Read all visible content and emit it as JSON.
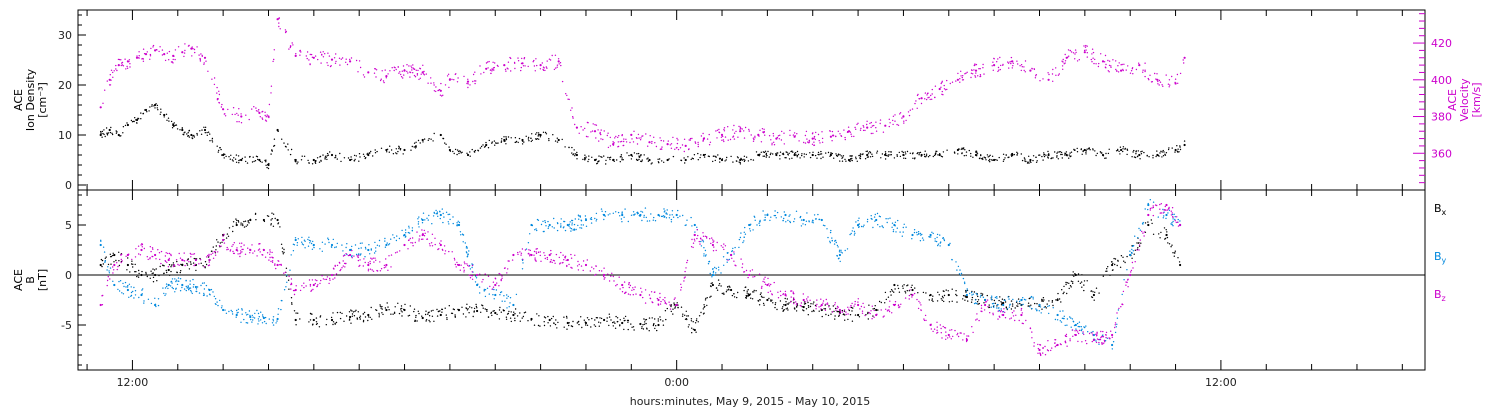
{
  "chart_data": [
    {
      "type": "scatter",
      "panel": "top",
      "ylabel_left_lines": [
        "ACE",
        "Ion Density",
        "[cm⁻³]"
      ],
      "ylabel_right_lines": [
        "ACE",
        "Velocity",
        "[km/s]"
      ],
      "ylim_left": [
        -1,
        35
      ],
      "ylim_right": [
        340,
        438
      ],
      "yticks_left": [
        "0",
        "10",
        "20",
        "30"
      ],
      "yticks_right": [
        "360",
        "380",
        "400",
        "420"
      ],
      "grid": false,
      "series": [
        {
          "axis": "left",
          "color": "#000000",
          "x": [
            -0.7,
            -0.5,
            -0.3,
            -0.1,
            0.1,
            0.3,
            0.5,
            0.7,
            0.9,
            1.1,
            1.3,
            1.6,
            2.0,
            2.4,
            2.8,
            3.0,
            3.2,
            3.6,
            4.0,
            4.4,
            4.8,
            5.2,
            5.6,
            6.0,
            6.4,
            6.8,
            7.0,
            7.4,
            7.8,
            8.2,
            8.6,
            9.0,
            9.4,
            9.8,
            10.2,
            10.6,
            11.0,
            11.4,
            11.8,
            12.2,
            12.6,
            13.0,
            13.4,
            13.8,
            14.2,
            14.6,
            15.0,
            15.4,
            15.8,
            16.2,
            16.6,
            17.0,
            17.4,
            17.8,
            18.2,
            18.6,
            19.0,
            19.4,
            19.8,
            20.2,
            20.6,
            21.0,
            21.4,
            21.8,
            22.2,
            22.6,
            23.0,
            23.2
          ],
          "y": [
            10,
            11,
            10,
            12,
            13,
            15,
            16,
            14,
            12,
            11,
            10,
            11,
            6,
            5,
            5,
            4,
            11,
            5,
            5,
            6,
            5,
            6,
            7,
            7,
            9,
            10,
            7,
            6,
            8,
            9,
            9,
            10,
            9,
            6,
            5,
            5,
            6,
            5,
            5,
            5,
            6,
            5,
            5,
            6,
            6,
            6,
            6,
            6,
            5,
            6,
            6,
            6,
            6,
            6,
            7,
            6,
            5,
            6,
            5,
            6,
            6,
            7,
            6,
            7,
            6,
            6,
            7,
            8
          ]
        },
        {
          "axis": "right",
          "color": "#cc00cc",
          "x": [
            -0.7,
            -0.5,
            -0.3,
            -0.1,
            0.1,
            0.3,
            0.5,
            0.7,
            0.9,
            1.1,
            1.3,
            1.6,
            2.0,
            2.4,
            2.8,
            3.0,
            3.2,
            3.6,
            4.0,
            4.4,
            4.8,
            5.2,
            5.6,
            6.0,
            6.4,
            6.8,
            7.0,
            7.4,
            7.8,
            8.2,
            8.6,
            9.0,
            9.4,
            9.8,
            10.2,
            10.6,
            11.0,
            11.4,
            11.8,
            12.2,
            12.6,
            13.0,
            13.4,
            13.8,
            14.2,
            14.6,
            15.0,
            15.4,
            15.8,
            16.2,
            16.6,
            17.0,
            17.4,
            17.8,
            18.2,
            18.6,
            19.0,
            19.4,
            19.8,
            20.2,
            20.6,
            21.0,
            21.4,
            21.8,
            22.2,
            22.6,
            23.0,
            23.2
          ],
          "y": [
            385,
            400,
            408,
            410,
            412,
            414,
            416,
            414,
            413,
            415,
            417,
            412,
            384,
            380,
            382,
            380,
            433,
            413,
            412,
            411,
            410,
            404,
            402,
            405,
            404,
            394,
            400,
            399,
            406,
            408,
            409,
            408,
            410,
            374,
            372,
            365,
            370,
            366,
            365,
            364,
            368,
            370,
            372,
            370,
            368,
            369,
            368,
            369,
            372,
            374,
            375,
            380,
            390,
            395,
            400,
            405,
            408,
            410,
            405,
            400,
            412,
            415,
            410,
            405,
            408,
            400,
            398,
            412
          ]
        }
      ]
    },
    {
      "type": "scatter",
      "panel": "bottom",
      "ylabel_left_lines": [
        "ACE",
        "B",
        "[nT]"
      ],
      "ylim": [
        -9.5,
        8.5
      ],
      "yticks": [
        "-5",
        "0",
        "5"
      ],
      "zero_line": true,
      "grid": false,
      "legend_position": "right",
      "series": [
        {
          "name": "B",
          "subscript": "x",
          "color": "#000000",
          "x": [
            -0.7,
            -0.4,
            -0.1,
            0.2,
            0.5,
            0.8,
            1.1,
            1.4,
            1.7,
            2.0,
            2.3,
            2.6,
            2.9,
            3.2,
            3.6,
            4.0,
            4.4,
            4.8,
            5.2,
            5.6,
            6.0,
            6.4,
            6.8,
            7.2,
            7.6,
            8.0,
            8.4,
            8.8,
            9.2,
            9.6,
            10.0,
            10.4,
            10.8,
            11.2,
            11.6,
            12.0,
            12.4,
            12.8,
            13.2,
            13.6,
            14.0,
            14.4,
            14.8,
            15.2,
            15.6,
            16.0,
            16.4,
            16.8,
            17.2,
            17.6,
            18.0,
            18.4,
            18.8,
            19.2,
            19.6,
            20.0,
            20.4,
            20.8,
            21.2,
            21.6,
            22.0,
            22.4,
            22.8,
            23.1
          ],
          "y": [
            1,
            2,
            1,
            0,
            0,
            0.5,
            1,
            1,
            1.5,
            4,
            5,
            5.5,
            5.5,
            5.5,
            -4.5,
            -4.5,
            -4.5,
            -4.2,
            -4,
            -3.5,
            -3.5,
            -4.3,
            -4,
            -3.5,
            -3.6,
            -3.8,
            -4,
            -4.4,
            -4.5,
            -4.8,
            -4.8,
            -4.5,
            -4.8,
            -4.9,
            -5,
            -3,
            -5.5,
            -1,
            -1.5,
            -2,
            -2.5,
            -3,
            -3.2,
            -3.5,
            -3.8,
            -4,
            -3.5,
            -1,
            -1.5,
            -2,
            -2,
            -2.2,
            -2.5,
            -2.8,
            -3,
            -3,
            -2.5,
            0,
            -2,
            1,
            2,
            5,
            4,
            1
          ]
        },
        {
          "name": "B",
          "subscript": "y",
          "color": "#0088dd",
          "x": [
            -0.7,
            -0.4,
            -0.1,
            0.2,
            0.5,
            0.8,
            1.1,
            1.4,
            1.7,
            2.0,
            2.3,
            2.6,
            2.9,
            3.2,
            3.6,
            4.0,
            4.4,
            4.8,
            5.2,
            5.6,
            6.0,
            6.4,
            6.8,
            7.2,
            7.6,
            8.0,
            8.4,
            8.8,
            9.2,
            9.6,
            10.0,
            10.4,
            10.8,
            11.2,
            11.6,
            12.0,
            12.4,
            12.8,
            13.2,
            13.6,
            14.0,
            14.4,
            14.8,
            15.2,
            15.6,
            16.0,
            16.4,
            16.8,
            17.2,
            17.6,
            18.0,
            18.4,
            18.8,
            19.2,
            19.6,
            20.0,
            20.4,
            20.8,
            21.2,
            21.6,
            22.0,
            22.4,
            22.8,
            23.1
          ],
          "y": [
            3,
            -1,
            -1.5,
            -2,
            -3,
            -1,
            -1,
            -1.2,
            -1.5,
            -3.5,
            -4,
            -4.2,
            -4.3,
            -4.4,
            3.5,
            3,
            3,
            2.5,
            2.5,
            3,
            4,
            5.5,
            6,
            5,
            -1,
            -2,
            -3,
            5,
            5,
            5,
            5.5,
            6,
            6,
            6,
            6,
            6,
            5,
            0,
            2,
            5,
            6,
            6,
            5.5,
            5.5,
            2,
            5,
            5.5,
            5,
            4,
            4,
            3,
            -2,
            -2.5,
            -3,
            -2.5,
            -3,
            -4,
            -5,
            -6,
            -7,
            2,
            7,
            6,
            5
          ]
        },
        {
          "name": "B",
          "subscript": "z",
          "color": "#cc00cc",
          "x": [
            -0.7,
            -0.4,
            -0.1,
            0.2,
            0.5,
            0.8,
            1.1,
            1.4,
            1.7,
            2.0,
            2.3,
            2.6,
            2.9,
            3.2,
            3.6,
            4.0,
            4.4,
            4.8,
            5.2,
            5.6,
            6.0,
            6.4,
            6.8,
            7.2,
            7.6,
            8.0,
            8.4,
            8.8,
            9.2,
            9.6,
            10.0,
            10.4,
            10.8,
            11.2,
            11.6,
            12.0,
            12.4,
            12.8,
            13.2,
            13.6,
            14.0,
            14.4,
            14.8,
            15.2,
            15.6,
            16.0,
            16.4,
            16.8,
            17.2,
            17.6,
            18.0,
            18.4,
            18.8,
            19.2,
            19.6,
            20.0,
            20.4,
            20.8,
            21.2,
            21.6,
            22.0,
            22.4,
            22.8,
            23.1
          ],
          "y": [
            -3,
            1,
            2,
            2.5,
            2,
            1.5,
            1.5,
            1.5,
            1.5,
            3.5,
            2.5,
            2.5,
            2.5,
            1,
            -1.5,
            -1,
            0,
            2,
            1,
            1,
            3,
            4,
            3,
            1,
            0,
            -1,
            2,
            2,
            2,
            1.5,
            1,
            0,
            -1,
            -2,
            -2.5,
            -3,
            4,
            3,
            2,
            0,
            -1,
            -2,
            -2.5,
            -3,
            -3.5,
            -3,
            -4,
            -3,
            -2,
            -5,
            -6,
            -6.5,
            -3,
            -4,
            -4,
            -7.5,
            -7,
            -6,
            -6.5,
            -6,
            0,
            6,
            7,
            5
          ]
        }
      ]
    }
  ],
  "x_axis": {
    "range": [
      -1.2,
      28.5
    ],
    "tick_labels": [
      {
        "x": 0,
        "label": "12:00"
      },
      {
        "x": 12,
        "label": "0:00"
      },
      {
        "x": 24,
        "label": "12:00"
      }
    ],
    "xlabel": "hours:minutes, May  9, 2015 - May 10, 2015"
  }
}
